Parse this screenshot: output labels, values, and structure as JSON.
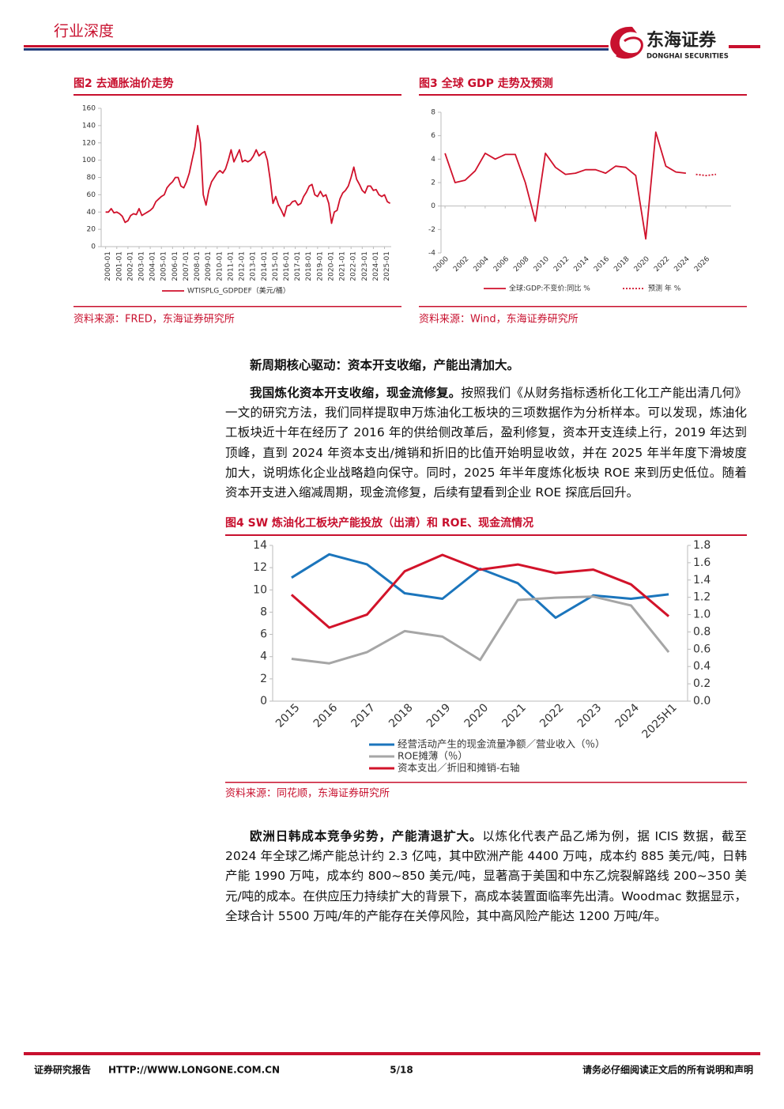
{
  "header": {
    "section": "行业深度",
    "logo_cn": "东海证券",
    "logo_en": "DONGHAI SECURITIES"
  },
  "chart_data": [
    {
      "type": "line",
      "title": "图2  去通胀油价走势",
      "source": "资料来源：FRED，东海证券研究所",
      "x": [
        2000,
        2000.25,
        2000.5,
        2000.75,
        2001,
        2001.25,
        2001.5,
        2001.75,
        2002,
        2002.25,
        2002.5,
        2002.75,
        2003,
        2003.25,
        2003.5,
        2003.75,
        2004,
        2004.25,
        2004.5,
        2004.75,
        2005,
        2005.25,
        2005.5,
        2005.75,
        2006,
        2006.25,
        2006.5,
        2006.75,
        2007,
        2007.25,
        2007.5,
        2007.75,
        2008,
        2008.25,
        2008.5,
        2008.75,
        2009,
        2009.25,
        2009.5,
        2009.75,
        2010,
        2010.25,
        2010.5,
        2010.75,
        2011,
        2011.25,
        2011.5,
        2011.75,
        2012,
        2012.25,
        2012.5,
        2012.75,
        2013,
        2013.25,
        2013.5,
        2013.75,
        2014,
        2014.25,
        2014.5,
        2014.75,
        2015,
        2015.25,
        2015.5,
        2015.75,
        2016,
        2016.25,
        2016.5,
        2016.75,
        2017,
        2017.25,
        2017.5,
        2017.75,
        2018,
        2018.25,
        2018.5,
        2018.75,
        2019,
        2019.25,
        2019.5,
        2019.75,
        2020,
        2020.25,
        2020.5,
        2020.75,
        2021,
        2021.25,
        2021.5,
        2021.75,
        2022,
        2022.25,
        2022.5,
        2022.75,
        2023,
        2023.25,
        2023.5,
        2023.75,
        2024,
        2024.25,
        2024.5,
        2024.75,
        2025,
        2025.25,
        2025.5
      ],
      "series": [
        {
          "name": "WTISPLG_GDPDEF（美元/桶）",
          "color": "#d0112b",
          "values": [
            40,
            40,
            44,
            39,
            40,
            38,
            35,
            28,
            30,
            36,
            38,
            37,
            44,
            36,
            38,
            40,
            42,
            45,
            52,
            55,
            58,
            60,
            68,
            72,
            75,
            80,
            80,
            70,
            68,
            75,
            85,
            100,
            115,
            140,
            120,
            60,
            48,
            65,
            75,
            80,
            85,
            88,
            85,
            90,
            100,
            112,
            98,
            105,
            112,
            98,
            100,
            98,
            100,
            105,
            112,
            105,
            108,
            110,
            100,
            78,
            50,
            58,
            48,
            42,
            35,
            47,
            48,
            52,
            53,
            48,
            50,
            58,
            63,
            70,
            72,
            60,
            58,
            64,
            58,
            60,
            50,
            27,
            40,
            42,
            55,
            62,
            65,
            70,
            80,
            92,
            78,
            72,
            65,
            62,
            70,
            70,
            65,
            66,
            60,
            58,
            60,
            52,
            50
          ]
        }
      ],
      "xlim": [
        1999.6,
        2025.6
      ],
      "xticks": [
        {
          "value": 2000,
          "label": "2000-01"
        },
        {
          "value": 2001,
          "label": "2001-01"
        },
        {
          "value": 2002,
          "label": "2002-01"
        },
        {
          "value": 2003,
          "label": "2003-01"
        },
        {
          "value": 2004,
          "label": "2004-01"
        },
        {
          "value": 2005,
          "label": "2005-01"
        },
        {
          "value": 2006,
          "label": "2006-01"
        },
        {
          "value": 2007,
          "label": "2007-01"
        },
        {
          "value": 2008,
          "label": "2008-01"
        },
        {
          "value": 2009,
          "label": "2009-01"
        },
        {
          "value": 2010,
          "label": "2010-01"
        },
        {
          "value": 2011,
          "label": "2011-01"
        },
        {
          "value": 2012,
          "label": "2012-01"
        },
        {
          "value": 2013,
          "label": "2013-01"
        },
        {
          "value": 2014,
          "label": "2014-01"
        },
        {
          "value": 2015,
          "label": "2015-01"
        },
        {
          "value": 2016,
          "label": "2016-01"
        },
        {
          "value": 2017,
          "label": "2017-01"
        },
        {
          "value": 2018,
          "label": "2018-01"
        },
        {
          "value": 2019,
          "label": "2019-01"
        },
        {
          "value": 2020,
          "label": "2020-01"
        },
        {
          "value": 2021,
          "label": "2021-01"
        },
        {
          "value": 2022,
          "label": "2022-01"
        },
        {
          "value": 2023,
          "label": "2023-01"
        },
        {
          "value": 2024,
          "label": "2024-01"
        },
        {
          "value": 2025,
          "label": "2025-01"
        }
      ],
      "ylim": [
        0,
        160
      ],
      "yticks": [
        0,
        20,
        40,
        60,
        80,
        100,
        120,
        140,
        160
      ],
      "grid": false,
      "legend": "bottom"
    },
    {
      "type": "line",
      "title": "图3  全球 GDP 走势及预测",
      "source": "资料来源：Wind，东海证券研究所",
      "x": [
        2000,
        2001,
        2002,
        2003,
        2004,
        2005,
        2006,
        2007,
        2008,
        2009,
        2010,
        2011,
        2012,
        2013,
        2014,
        2015,
        2016,
        2017,
        2018,
        2019,
        2020,
        2021,
        2022,
        2023,
        2024,
        2025,
        2026,
        2027
      ],
      "series": [
        {
          "name": "全球:GDP:不变价:同比 %",
          "color": "#d0112b",
          "dash": "solid",
          "values": [
            4.5,
            2.0,
            2.2,
            3.0,
            4.5,
            4.0,
            4.4,
            4.4,
            2.0,
            -1.3,
            4.5,
            3.3,
            2.7,
            2.8,
            3.1,
            3.1,
            2.8,
            3.4,
            3.3,
            2.6,
            -2.8,
            6.3,
            3.4,
            2.9,
            2.8,
            null,
            null,
            null
          ]
        },
        {
          "name": "预测 年 %",
          "color": "#d0112b",
          "dash": "dotted",
          "values": [
            null,
            null,
            null,
            null,
            null,
            null,
            null,
            null,
            null,
            null,
            null,
            null,
            null,
            null,
            null,
            null,
            null,
            null,
            null,
            null,
            null,
            null,
            null,
            null,
            null,
            2.7,
            2.6,
            2.7
          ]
        }
      ],
      "xlim": [
        1999.6,
        2028.5
      ],
      "xticks": [
        2000,
        2002,
        2004,
        2006,
        2008,
        2010,
        2012,
        2014,
        2016,
        2018,
        2020,
        2022,
        2024,
        2026
      ],
      "ylim": [
        -4,
        8
      ],
      "yticks": [
        -4,
        -2,
        0,
        2,
        4,
        6,
        8
      ],
      "grid": false,
      "legend": "bottom"
    },
    {
      "type": "line",
      "title": "图4  SW 炼油化工板块产能投放（出清）和 ROE、现金流情况",
      "source": "资料来源：同花顺，东海证券研究所",
      "categories": [
        "2015",
        "2016",
        "2017",
        "2018",
        "2019",
        "2020",
        "2021",
        "2022",
        "2023",
        "2024",
        "2025H1"
      ],
      "series": [
        {
          "name": "经营活动产生的现金流量净额／营业收入（％）",
          "color": "#1b75bc",
          "values": [
            11.1,
            13.2,
            12.3,
            9.7,
            9.2,
            11.9,
            10.6,
            7.5,
            9.5,
            9.2,
            9.6
          ]
        },
        {
          "name": "ROE摊薄（％）",
          "color": "#a6a6a6",
          "values": [
            3.8,
            3.4,
            4.4,
            6.3,
            5.8,
            3.7,
            9.1,
            9.3,
            9.4,
            8.6,
            4.4
          ]
        },
        {
          "name": "资本支出／折旧和摊销-右轴",
          "color": "#d2132a",
          "axis": "y2",
          "values": [
            1.23,
            0.85,
            1.0,
            1.5,
            1.69,
            1.52,
            1.58,
            1.48,
            1.52,
            1.35,
            0.98
          ]
        }
      ],
      "ylim": [
        0,
        14
      ],
      "yticks": [
        0,
        2,
        4,
        6,
        8,
        10,
        12,
        14
      ],
      "y2lim": [
        0,
        1.8
      ],
      "y2ticks": [
        {
          "value": 0,
          "label": "0.0"
        },
        0.2,
        0.4,
        0.6,
        0.8,
        {
          "value": 1,
          "label": "1.0"
        },
        1.2,
        1.4,
        1.6,
        1.8
      ],
      "grid": false,
      "legend": "bottom-left"
    }
  ],
  "paragraphs": [
    {
      "bold": "新周期核心驱动：资本开支收缩，产能出清加大。"
    },
    {
      "bold": "我国炼化资本开支收缩，现金流修复。",
      "text": "按照我们《从财务指标透析化工化工产能出清几何》一文的研究方法，我们同样提取申万炼油化工板块的三项数据作为分析样本。可以发现，炼油化工板块近十年在经历了 2016 年的供给侧改革后，盈利修复，资本开支连续上行，2019 年达到顶峰，直到 2024 年资本支出/摊销和折旧的比值开始明显收敛，并在 2025 年半年度下滑坡度加大，说明炼化企业战略趋向保守。同时，2025 年半年度炼化板块 ROE 来到历史低位。随着资本开支进入缩减周期，现金流修复，后续有望看到企业 ROE 探底后回升。"
    },
    {
      "bold": "欧洲日韩成本竞争劣势，产能清退扩大。",
      "text": "以炼化代表产品乙烯为例，据 ICIS 数据，截至 2024 年全球乙烯产能总计约 2.3 亿吨，其中欧洲产能 4400 万吨，成本约 885 美元/吨，日韩产能 1990 万吨，成本约 800~850 美元/吨，显著高于美国和中东乙烷裂解路线 200~350 美元/吨的成本。在供应压力持续扩大的背景下，高成本装置面临率先出清。Woodmac 数据显示，全球合计 5500 万吨/年的产能存在关停风险，其中高风险产能达 1200 万吨/年。"
    }
  ],
  "footer": {
    "left": "证券研究报告",
    "url": "HTTP://WWW.LONGONE.COM.CN",
    "page": "5/18",
    "right": "请务必仔细阅读正文后的所有说明和声明"
  }
}
